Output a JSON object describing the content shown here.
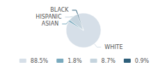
{
  "chart_data": {
    "type": "pie",
    "categories": [
      "WHITE",
      "ASIAN",
      "HISPANIC",
      "BLACK"
    ],
    "values": [
      88.5,
      1.8,
      8.7,
      0.9
    ],
    "value_labels": [
      "88.5%",
      "1.8%",
      "8.7%",
      "0.9%"
    ],
    "colors": [
      "#d6dfe8",
      "#7aaabe",
      "#c5d4de",
      "#2e5f7a"
    ],
    "legend": "bottom"
  }
}
